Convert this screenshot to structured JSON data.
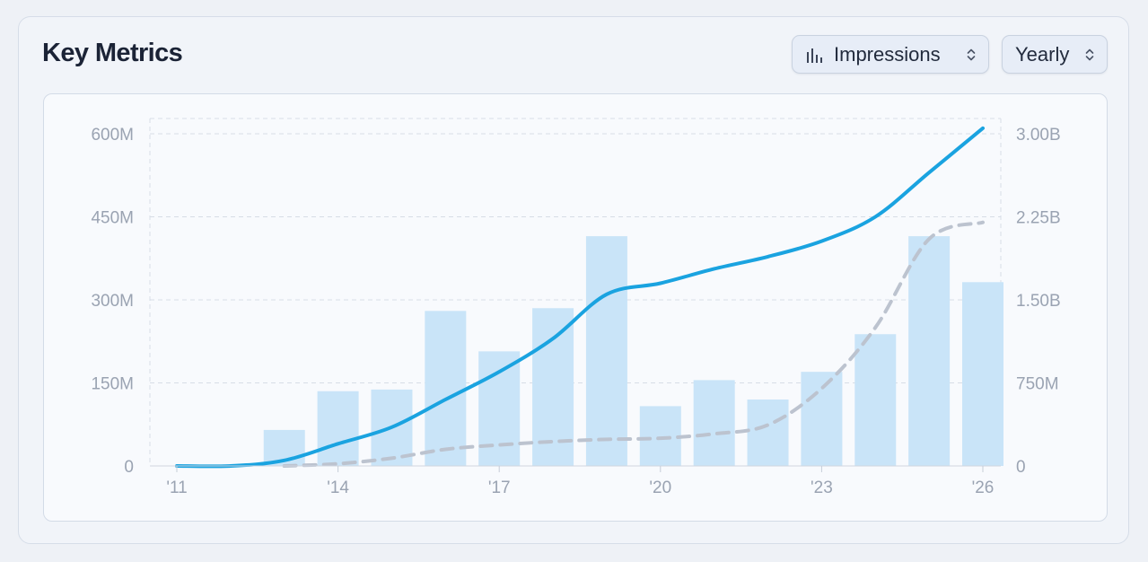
{
  "header": {
    "title": "Key Metrics"
  },
  "controls": {
    "metric": {
      "label": "Impressions",
      "icon": "bar-chart-icon"
    },
    "period": {
      "label": "Yearly"
    }
  },
  "colors": {
    "bar": "#c9e4f8",
    "line": "#1aa3e0",
    "dashed": "#bcc3cf",
    "grid": "#d7dde6"
  },
  "chart_data": {
    "type": "bar",
    "x_tick_labels": [
      "'11",
      "'14",
      "'17",
      "'20",
      "'23",
      "'26"
    ],
    "y_left": {
      "ticks": [
        "0",
        "150M",
        "300M",
        "450M",
        "600M"
      ],
      "ylim": [
        0,
        600000000
      ]
    },
    "y_right": {
      "ticks": [
        "0",
        "750M",
        "1.50B",
        "2.25B",
        "3.00B"
      ],
      "ylim": [
        0,
        3000000000
      ]
    },
    "grid": true,
    "series": [
      {
        "type": "bar",
        "axis": "left",
        "x": [
          2013,
          2014,
          2015,
          2016,
          2017,
          2018,
          2019,
          2020,
          2021,
          2022,
          2023,
          2024,
          2025,
          2026
        ],
        "values": [
          65000000,
          135000000,
          138000000,
          280000000,
          207000000,
          285000000,
          415000000,
          108000000,
          155000000,
          120000000,
          170000000,
          238000000,
          415000000,
          332000000
        ]
      },
      {
        "type": "line",
        "axis": "right",
        "style": "solid",
        "x": [
          2011,
          2012,
          2013,
          2014,
          2015,
          2016,
          2017,
          2018,
          2019,
          2020,
          2021,
          2022,
          2023,
          2024,
          2025,
          2026
        ],
        "values": [
          0,
          0,
          50000000,
          200000000,
          350000000,
          600000000,
          850000000,
          1150000000,
          1550000000,
          1650000000,
          1780000000,
          1890000000,
          2030000000,
          2250000000,
          2650000000,
          3050000000
        ]
      },
      {
        "type": "line",
        "axis": "right",
        "style": "dashed",
        "x": [
          2013,
          2014,
          2015,
          2016,
          2017,
          2018,
          2019,
          2020,
          2021,
          2022,
          2023,
          2024,
          2025,
          2026
        ],
        "values": [
          0,
          20000000,
          70000000,
          150000000,
          190000000,
          220000000,
          240000000,
          250000000,
          290000000,
          370000000,
          700000000,
          1250000000,
          2050000000,
          2200000000
        ]
      }
    ]
  }
}
